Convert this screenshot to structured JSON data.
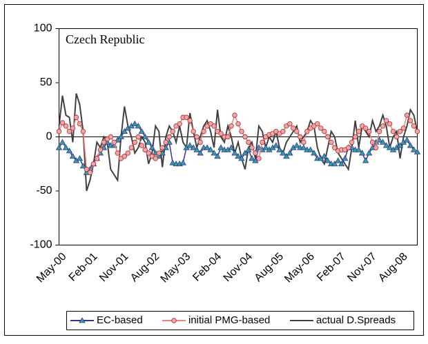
{
  "chart_data": {
    "type": "line",
    "title": "Czech Republic",
    "categories": [
      "May-00",
      null,
      null,
      null,
      null,
      null,
      null,
      null,
      null,
      "Feb-01",
      null,
      null,
      null,
      null,
      null,
      null,
      null,
      null,
      "Nov-01",
      null,
      null,
      null,
      null,
      null,
      null,
      null,
      null,
      "Aug-02",
      null,
      null,
      null,
      null,
      null,
      null,
      null,
      null,
      "May-03",
      null,
      null,
      null,
      null,
      null,
      null,
      null,
      null,
      "Feb-04",
      null,
      null,
      null,
      null,
      null,
      null,
      null,
      null,
      "Nov-04",
      null,
      null,
      null,
      null,
      null,
      null,
      null,
      null,
      "Aug-05",
      null,
      null,
      null,
      null,
      null,
      null,
      null,
      null,
      "May-06",
      null,
      null,
      null,
      null,
      null,
      null,
      null,
      null,
      "Feb-07",
      null,
      null,
      null,
      null,
      null,
      null,
      null,
      null,
      "Nov-07",
      null,
      null,
      null,
      null,
      null,
      null,
      null,
      null,
      "Aug-08",
      null,
      null,
      null,
      null,
      null
    ],
    "series": [
      {
        "name": "EC-based",
        "color": "#333399",
        "marker": "triangle",
        "marker_fill": "#33a0a0",
        "values": [
          -10,
          -5,
          -10,
          -13,
          -18,
          -22,
          -20,
          -27,
          -33,
          -30,
          -25,
          -20,
          -15,
          -10,
          -5,
          -8,
          -8,
          -3,
          0,
          5,
          8,
          10,
          12,
          10,
          5,
          0,
          -5,
          -10,
          -15,
          -18,
          -15,
          -10,
          -5,
          -24,
          -25,
          -25,
          -24,
          -10,
          -8,
          -10,
          -12,
          -15,
          -10,
          -10,
          -12,
          -15,
          -18,
          -10,
          -12,
          -12,
          -10,
          -15,
          -18,
          -20,
          -15,
          -12,
          -20,
          -22,
          -10,
          -12,
          -10,
          -12,
          -10,
          -8,
          -12,
          -15,
          -18,
          -15,
          -10,
          -8,
          -10,
          -10,
          -12,
          -12,
          -15,
          -20,
          -20,
          -18,
          -22,
          -25,
          -25,
          -22,
          -25,
          -20,
          -10,
          -10,
          -12,
          -12,
          -15,
          -22,
          -15,
          -10,
          -5,
          -3,
          -5,
          -8,
          -10,
          -12,
          -10,
          -8,
          -5,
          -3,
          -8,
          -12,
          -14
        ]
      },
      {
        "name": "initial PMG-based",
        "color": "#f08080",
        "marker": "circle",
        "marker_fill": "#f4a4a4",
        "values": [
          5,
          13,
          10,
          5,
          8,
          18,
          12,
          5,
          -30,
          -33,
          -25,
          -20,
          -12,
          -5,
          -2,
          0,
          -5,
          -15,
          -20,
          -18,
          -15,
          -10,
          -5,
          0,
          -8,
          -12,
          -15,
          -18,
          -20,
          -15,
          -10,
          -5,
          0,
          5,
          10,
          12,
          18,
          18,
          15,
          5,
          0,
          -5,
          5,
          10,
          12,
          10,
          5,
          3,
          0,
          0,
          10,
          20,
          12,
          5,
          0,
          -5,
          -10,
          -15,
          -20,
          -5,
          0,
          2,
          3,
          5,
          3,
          5,
          10,
          12,
          8,
          5,
          0,
          -5,
          5,
          8,
          10,
          12,
          8,
          5,
          0,
          -5,
          -10,
          -13,
          -12,
          -12,
          -10,
          -5,
          0,
          5,
          10,
          8,
          5,
          -5,
          -10,
          5,
          10,
          15,
          12,
          5,
          0,
          5,
          8,
          20,
          15,
          10,
          5
        ]
      },
      {
        "name": "actual D.Spreads",
        "color": "#404040",
        "marker": "none",
        "values": [
          10,
          38,
          20,
          18,
          -5,
          40,
          30,
          5,
          -50,
          -40,
          -25,
          -5,
          -10,
          0,
          -5,
          -30,
          -35,
          -40,
          0,
          28,
          10,
          0,
          -15,
          -10,
          0,
          -5,
          -25,
          -15,
          10,
          5,
          -28,
          0,
          10,
          5,
          -5,
          10,
          -5,
          -10,
          22,
          5,
          -10,
          0,
          10,
          15,
          5,
          -10,
          25,
          0,
          -5,
          10,
          0,
          -15,
          -5,
          -20,
          -30,
          -10,
          -5,
          -20,
          10,
          5,
          -10,
          0,
          -5,
          5,
          -10,
          -15,
          -5,
          0,
          5,
          10,
          -5,
          0,
          5,
          15,
          10,
          -10,
          -20,
          -25,
          -10,
          5,
          0,
          -15,
          -20,
          -25,
          -30,
          -10,
          15,
          -10,
          10,
          5,
          0,
          15,
          5,
          10,
          20,
          10,
          -10,
          0,
          5,
          -20,
          0,
          10,
          25,
          20,
          5
        ]
      }
    ],
    "ylim": [
      -100,
      100
    ],
    "yticks": [
      -100,
      -50,
      0,
      50,
      100
    ],
    "grid": false,
    "legend": "bottom"
  }
}
